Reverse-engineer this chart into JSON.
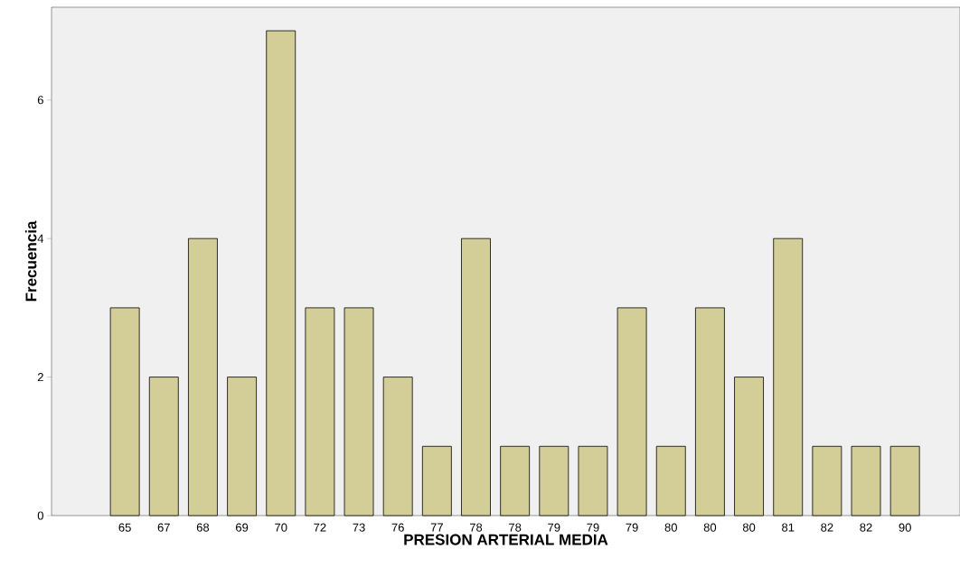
{
  "chart_data": {
    "type": "bar",
    "xlabel": "PRESION ARTERIAL MEDIA",
    "ylabel": "Frecuencia",
    "categories": [
      "65",
      "67",
      "68",
      "69",
      "70",
      "72",
      "73",
      "76",
      "77",
      "78",
      "78",
      "79",
      "79",
      "79",
      "80",
      "80",
      "80",
      "81",
      "82",
      "82",
      "90"
    ],
    "values": [
      3,
      2,
      4,
      2,
      7,
      3,
      3,
      2,
      1,
      4,
      1,
      1,
      1,
      3,
      1,
      3,
      2,
      4,
      1,
      1,
      1
    ],
    "color": "#d3ce98",
    "ylim": [
      0,
      7.34
    ],
    "yticks": [
      0,
      2,
      4,
      6
    ],
    "grid": false
  }
}
